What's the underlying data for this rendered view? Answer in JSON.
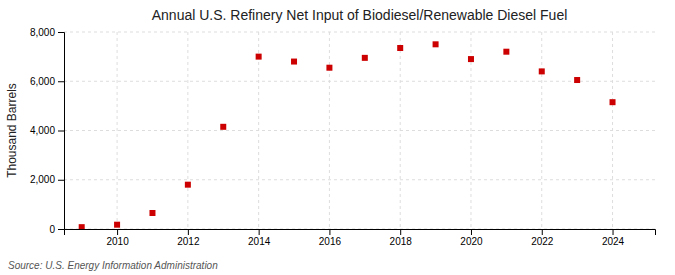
{
  "chart_data": {
    "type": "scatter",
    "title": "Annual U.S. Refinery Net Input of Biodiesel/Renewable Diesel Fuel",
    "y_label": "Thousand Barrels",
    "annotations": [
      "Source: U.S. Energy Information Administration"
    ],
    "x": [
      2009,
      2010,
      2011,
      2012,
      2013,
      2014,
      2015,
      2016,
      2017,
      2018,
      2019,
      2020,
      2021,
      2022,
      2023,
      2024
    ],
    "values": [
      75,
      175,
      650,
      1800,
      4150,
      7000,
      6800,
      6550,
      6950,
      7350,
      7500,
      6900,
      7200,
      6400,
      6050,
      5150
    ],
    "color": "#cc0000",
    "marker": "square",
    "xlim": [
      2008.5,
      2025.2
    ],
    "xticks": [
      2010,
      2012,
      2014,
      2016,
      2018,
      2020,
      2022,
      2024
    ],
    "ylim": [
      0,
      8000
    ],
    "yticks": [
      0,
      {
        "value": 2000,
        "label": "2,000"
      },
      {
        "value": 4000,
        "label": "4,000"
      },
      {
        "value": 6000,
        "label": "6,000"
      },
      {
        "value": 8000,
        "label": "8,000"
      }
    ],
    "grid": true
  }
}
